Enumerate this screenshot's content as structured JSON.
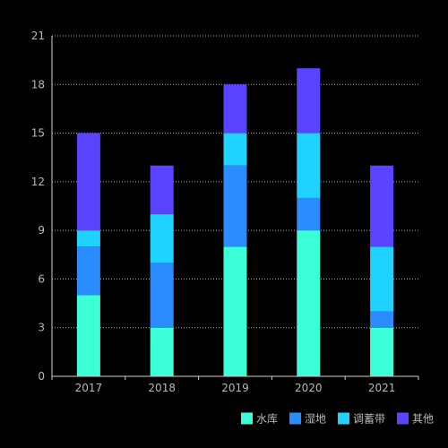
{
  "chart_data": {
    "type": "bar",
    "stacked": true,
    "categories": [
      "2017",
      "2018",
      "2019",
      "2020",
      "2021"
    ],
    "series": [
      {
        "name": "水库",
        "values": [
          5,
          3,
          8,
          9,
          3
        ],
        "color": "#3cffd8"
      },
      {
        "name": "湿地",
        "values": [
          3,
          4,
          5,
          2,
          1
        ],
        "color": "#2b8cff"
      },
      {
        "name": "调蓄带",
        "values": [
          1,
          3,
          2,
          4,
          4
        ],
        "color": "#1fd2ff"
      },
      {
        "name": "其他",
        "values": [
          6,
          3,
          3,
          4,
          5
        ],
        "color": "#5a44ff"
      }
    ],
    "ylim": [
      0,
      21
    ],
    "yticks": [
      0,
      3,
      6,
      9,
      12,
      15,
      18,
      21
    ],
    "grid": true,
    "legend_position": "bottom-right",
    "background": "#000000",
    "gridline_color": "#aaaaaa"
  }
}
